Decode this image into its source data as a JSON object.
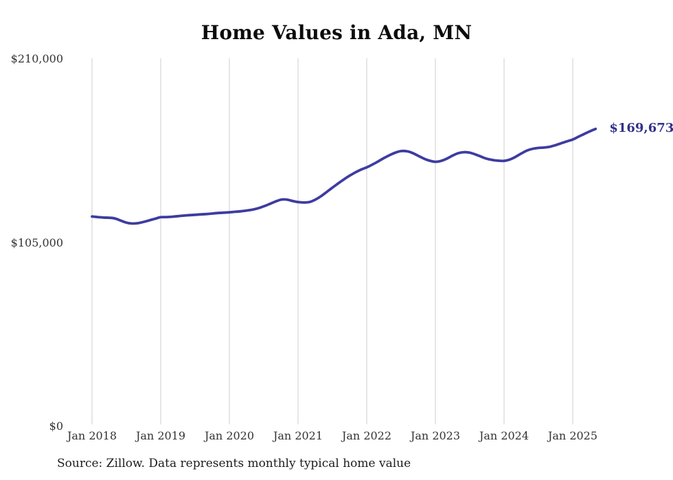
{
  "title": "Home Values in Ada, MN",
  "source_note": "Source: Zillow. Data represents monthly typical home value",
  "colors": {
    "line": "#3e3ca0",
    "end_label": "#30308a",
    "grid": "#cccccc",
    "title_text": "#0c0c0c",
    "axis_text": "#333333",
    "source_text": "#1c1c1c",
    "background": "#ffffff"
  },
  "chart_data": {
    "type": "line",
    "title": "Home Values in Ada, MN",
    "x_start_month": "2018-01",
    "x_end_month": "2025-05",
    "months_per_x_tick": 12,
    "x_tick_labels": [
      "Jan 2018",
      "Jan 2019",
      "Jan 2020",
      "Jan 2021",
      "Jan 2022",
      "Jan 2023",
      "Jan 2024",
      "Jan 2025"
    ],
    "y_ticks": [
      {
        "label": "$0",
        "value": 0
      },
      {
        "label": "$105,000",
        "value": 105000
      },
      {
        "label": "$210,000",
        "value": 210000
      }
    ],
    "ylim": [
      0,
      210000
    ],
    "grid": "vertical-only",
    "legend": "none",
    "end_annotation": "$169,673",
    "series": [
      {
        "name": "Monthly typical home value",
        "values": [
          119600,
          119300,
          119000,
          118900,
          118500,
          117300,
          116100,
          115600,
          115800,
          116500,
          117400,
          118300,
          119200,
          119300,
          119500,
          119800,
          120100,
          120400,
          120600,
          120800,
          121000,
          121300,
          121600,
          121800,
          122000,
          122300,
          122600,
          123000,
          123500,
          124300,
          125400,
          126700,
          128100,
          129200,
          129300,
          128500,
          127900,
          127600,
          127900,
          129200,
          131200,
          133600,
          136100,
          138500,
          140800,
          142900,
          144800,
          146400,
          147700,
          149300,
          151100,
          153000,
          154700,
          156100,
          157000,
          156900,
          155900,
          154300,
          152700,
          151500,
          150900,
          151400,
          152700,
          154400,
          155800,
          156400,
          156100,
          155100,
          153800,
          152600,
          151900,
          151500,
          151400,
          152200,
          153700,
          155600,
          157300,
          158300,
          158800,
          159000,
          159500,
          160400,
          161500,
          162600,
          163600,
          165200,
          166800,
          168300,
          169673
        ]
      }
    ]
  }
}
